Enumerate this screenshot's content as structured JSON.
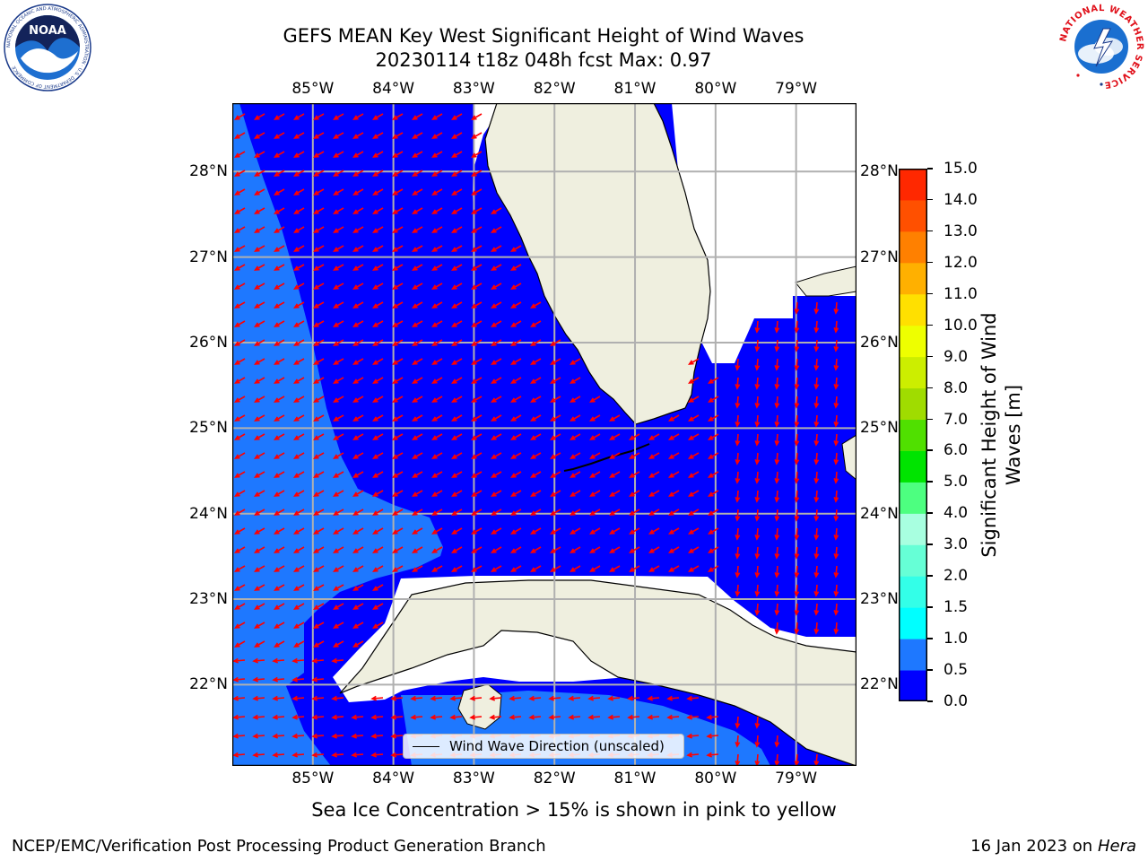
{
  "title": {
    "line1": "GEFS MEAN Key West Significant Height of Wind Waves",
    "line2": "20230114 t18z 048h fcst   Max: 0.97"
  },
  "map": {
    "lon_labels": [
      "85°W",
      "84°W",
      "83°W",
      "82°W",
      "81°W",
      "80°W",
      "79°W"
    ],
    "lon_values": [
      -85,
      -84,
      -83,
      -82,
      -81,
      -80,
      -79
    ],
    "lat_labels": [
      "28°N",
      "27°N",
      "26°N",
      "25°N",
      "24°N",
      "23°N",
      "22°N"
    ],
    "lat_values": [
      28,
      27,
      26,
      25,
      24,
      23,
      22
    ],
    "extent": {
      "lon_min": -86,
      "lon_max": -78.25,
      "lat_min": 21.05,
      "lat_max": 28.8
    },
    "legend_label": "Wind Wave Direction (unscaled)",
    "colors": {
      "land": "#efefdf",
      "band_0_05": "#0000ff",
      "band_05_10": "#1e78ff",
      "arrow": "#ff0000",
      "grid": "#b0b0b0",
      "coast": "#000000"
    }
  },
  "colorbar": {
    "label": "Significant Height of Wind Waves [m]",
    "ticks": [
      "0.0",
      "0.5",
      "1.0",
      "1.5",
      "2.0",
      "3.0",
      "4.0",
      "5.0",
      "6.0",
      "7.0",
      "8.0",
      "9.0",
      "10.0",
      "11.0",
      "12.0",
      "13.0",
      "14.0",
      "15.0"
    ],
    "colors": [
      "#0000ff",
      "#1e78ff",
      "#00ffff",
      "#33ffe8",
      "#66ffd6",
      "#a8ffe0",
      "#4dff80",
      "#00e400",
      "#50e000",
      "#a0dc00",
      "#ccee00",
      "#eeff00",
      "#ffe000",
      "#ffb000",
      "#ff8000",
      "#ff5000",
      "#ff2800"
    ]
  },
  "notes": {
    "sea_ice": "Sea Ice Concentration > 15% is shown in pink to yellow",
    "footer_left": "NCEP/EMC/Verification Post Processing Product Generation Branch",
    "footer_date": "16 Jan 2023 on ",
    "footer_system": "Hera"
  },
  "logos": {
    "noaa_text": "NOAA",
    "noaa_ring": "NATIONAL OCEANIC AND ATMOSPHERIC ADMINISTRATION · U.S. DEPARTMENT OF COMMERCE",
    "nws_ring": "NATIONAL WEATHER SERVICE"
  }
}
